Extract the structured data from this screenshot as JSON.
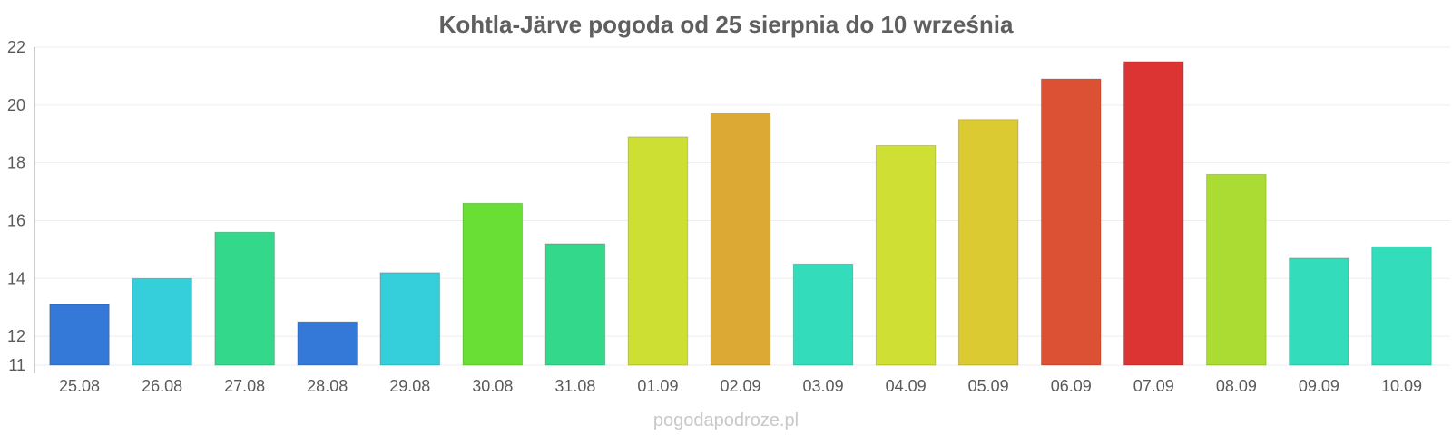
{
  "chart_data": {
    "type": "bar",
    "title": "Kohtla-Järve pogoda od 25 sierpnia do 10 września",
    "categories": [
      "25.08",
      "26.08",
      "27.08",
      "28.08",
      "29.08",
      "30.08",
      "31.08",
      "01.09",
      "02.09",
      "03.09",
      "04.09",
      "05.09",
      "06.09",
      "07.09",
      "08.09",
      "09.09",
      "10.09"
    ],
    "values": [
      13.1,
      14.0,
      15.6,
      12.5,
      14.2,
      16.6,
      15.2,
      18.9,
      19.7,
      14.5,
      18.6,
      19.5,
      20.9,
      21.5,
      17.6,
      14.7,
      15.1
    ],
    "colors": [
      "#3478d8",
      "#35cfdc",
      "#33d88a",
      "#3478d8",
      "#35cfdc",
      "#69df35",
      "#33d88a",
      "#cddf33",
      "#dba934",
      "#33dcba",
      "#cfdf33",
      "#dcca33",
      "#dc5133",
      "#dc3333",
      "#abdc33",
      "#33dcba",
      "#33dcba"
    ],
    "ylim": [
      11,
      22
    ],
    "yticks": [
      11,
      12,
      14,
      16,
      18,
      20,
      22
    ],
    "grid": true,
    "legend": "none",
    "watermark": "pogodapodroze.pl"
  }
}
